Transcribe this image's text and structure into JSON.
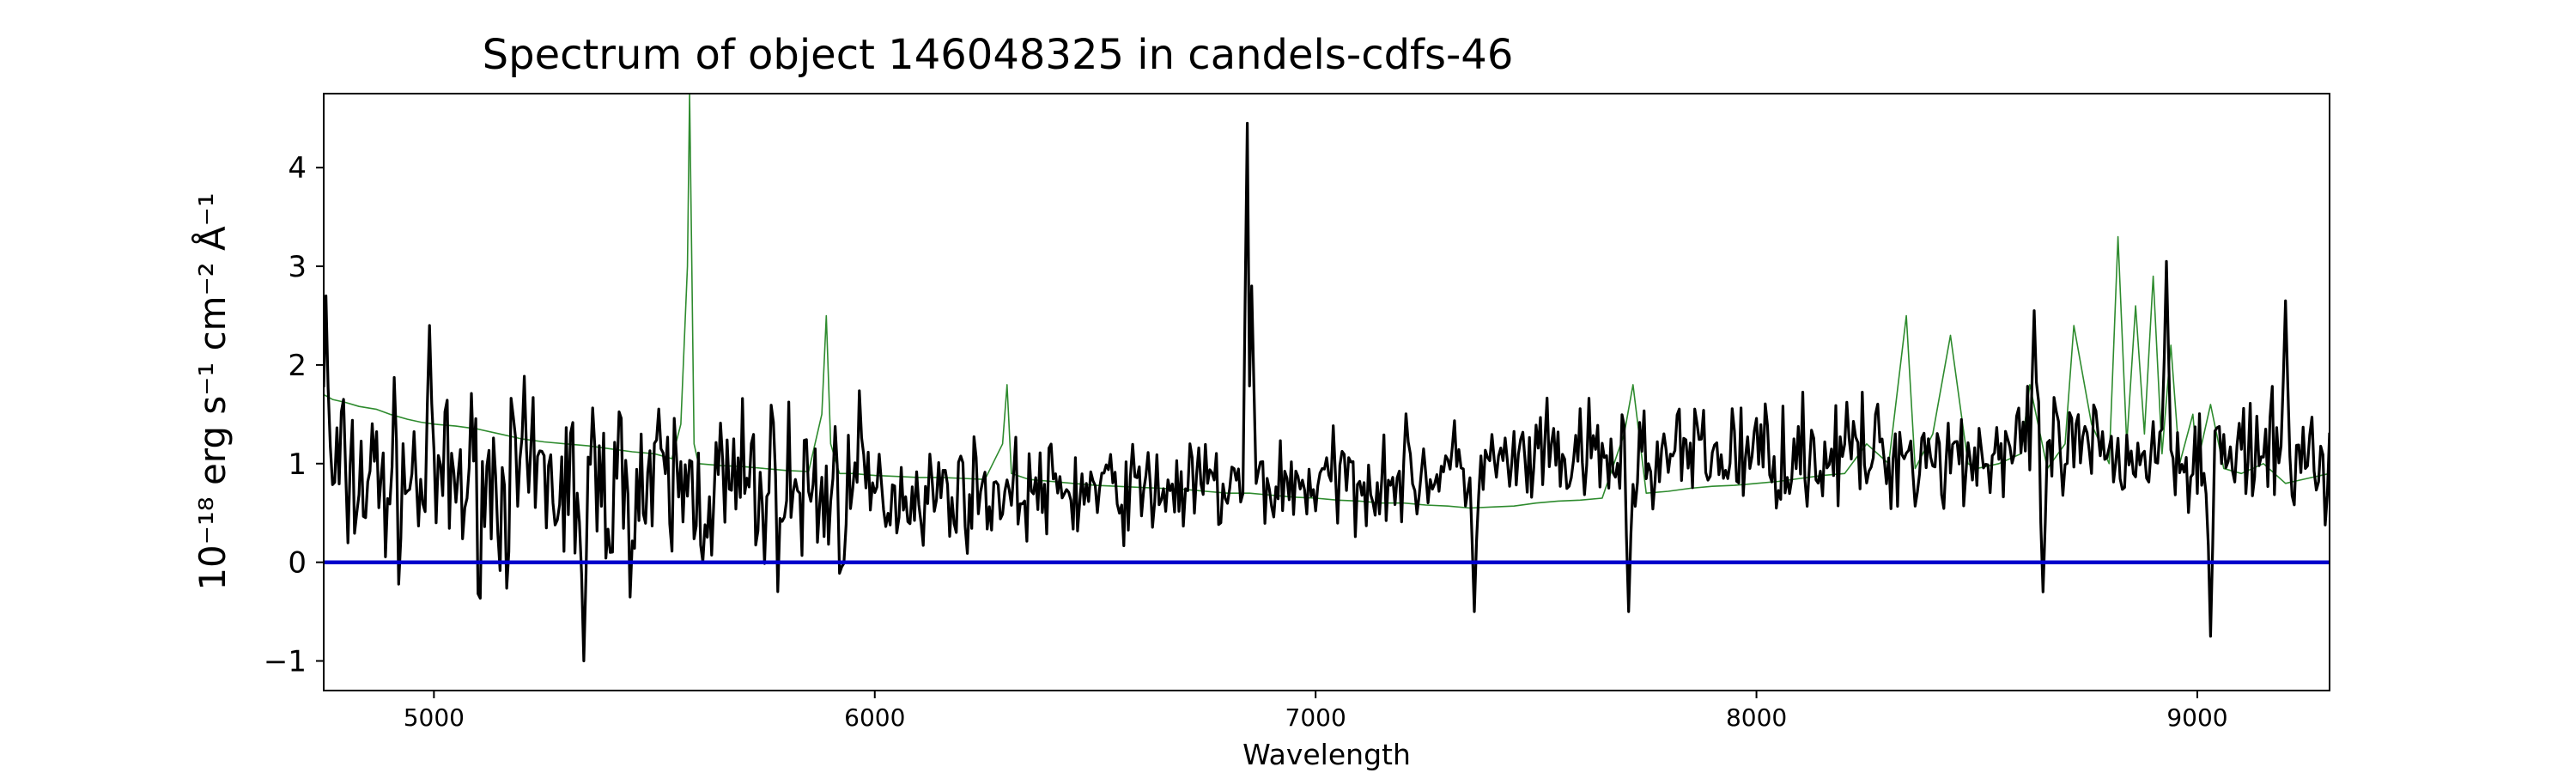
{
  "chart_data": {
    "type": "line",
    "title": "Spectrum of object 146048325 in candels-cdfs-46",
    "xlabel": "Wavelength",
    "ylabel": "10⁻¹⁸ erg s⁻¹ cm⁻² Å⁻¹",
    "xlim": [
      4750,
      9300
    ],
    "ylim": [
      -1.3,
      4.75
    ],
    "xticks": [
      5000,
      6000,
      7000,
      8000,
      9000
    ],
    "yticks": [
      -1,
      0,
      1,
      2,
      3,
      4
    ],
    "xtick_labels": [
      "5000",
      "6000",
      "7000",
      "8000",
      "9000"
    ],
    "ytick_labels": [
      "−1",
      "0",
      "1",
      "2",
      "3",
      "4"
    ],
    "grid": false,
    "legend": "none",
    "series": [
      {
        "color": "#2e8b2e",
        "x": [
          4750,
          4770,
          4800,
          4830,
          4870,
          4900,
          4940,
          4970,
          5000,
          5050,
          5100,
          5150,
          5200,
          5250,
          5300,
          5350,
          5400,
          5450,
          5500,
          5540,
          5560,
          5575,
          5580,
          5585,
          5590,
          5600,
          5650,
          5700,
          5750,
          5800,
          5850,
          5880,
          5890,
          5900,
          5920,
          5950,
          6000,
          6050,
          6100,
          6150,
          6200,
          6250,
          6290,
          6300,
          6310,
          6350,
          6400,
          6450,
          6500,
          6550,
          6600,
          6650,
          6700,
          6750,
          6800,
          6850,
          6900,
          6950,
          7000,
          7050,
          7100,
          7150,
          7200,
          7250,
          7300,
          7350,
          7400,
          7450,
          7500,
          7550,
          7600,
          7650,
          7700,
          7720,
          7750,
          7800,
          7850,
          7900,
          7950,
          8000,
          8050,
          8100,
          8150,
          8200,
          8250,
          8300,
          8340,
          8360,
          8400,
          8440,
          8480,
          8500,
          8550,
          8600,
          8620,
          8660,
          8700,
          8720,
          8760,
          8800,
          8820,
          8840,
          8860,
          8880,
          8900,
          8920,
          8940,
          8960,
          8990,
          9000,
          9030,
          9060,
          9100,
          9150,
          9200,
          9250,
          9300
        ],
        "y": [
          1.7,
          1.65,
          1.62,
          1.58,
          1.55,
          1.5,
          1.45,
          1.42,
          1.4,
          1.38,
          1.35,
          1.3,
          1.25,
          1.22,
          1.2,
          1.18,
          1.15,
          1.12,
          1.1,
          1.05,
          1.4,
          3.0,
          4.75,
          3.0,
          1.2,
          1.0,
          0.98,
          0.97,
          0.95,
          0.93,
          0.92,
          1.5,
          2.5,
          1.2,
          0.9,
          0.9,
          0.88,
          0.87,
          0.86,
          0.86,
          0.85,
          0.84,
          1.2,
          1.8,
          0.9,
          0.84,
          0.82,
          0.8,
          0.78,
          0.77,
          0.76,
          0.75,
          0.74,
          0.72,
          0.7,
          0.7,
          0.68,
          0.66,
          0.65,
          0.63,
          0.62,
          0.6,
          0.6,
          0.58,
          0.57,
          0.55,
          0.56,
          0.57,
          0.6,
          0.62,
          0.63,
          0.65,
          1.3,
          1.8,
          0.7,
          0.72,
          0.75,
          0.77,
          0.78,
          0.8,
          0.82,
          0.85,
          0.88,
          0.9,
          1.2,
          1.0,
          2.5,
          0.95,
          1.3,
          2.3,
          1.0,
          0.95,
          1.0,
          1.1,
          1.8,
          0.95,
          1.2,
          2.4,
          1.4,
          1.0,
          3.3,
          1.2,
          2.6,
          1.3,
          2.9,
          1.1,
          2.2,
          1.0,
          1.5,
          1.0,
          1.6,
          0.95,
          0.9,
          1.0,
          0.8,
          0.85,
          0.9
        ]
      },
      {
        "color": "#000000",
        "seed": 7,
        "x_range": [
          4750,
          9300
        ],
        "step": 5,
        "baseline": [
          [
            4750,
            0.85
          ],
          [
            5500,
            0.75
          ],
          [
            6000,
            0.7
          ],
          [
            6500,
            0.72
          ],
          [
            7000,
            0.8
          ],
          [
            7500,
            1.0
          ],
          [
            8000,
            1.1
          ],
          [
            8500,
            1.1
          ],
          [
            9000,
            1.1
          ],
          [
            9300,
            1.0
          ]
        ],
        "features": [
          {
            "x": 4755,
            "y": 2.7
          },
          {
            "x": 4990,
            "y": 2.4
          },
          {
            "x": 5340,
            "y": -1.0
          },
          {
            "x": 6845,
            "y": 4.45
          },
          {
            "x": 6855,
            "y": 2.8
          },
          {
            "x": 7360,
            "y": -0.5
          },
          {
            "x": 7710,
            "y": -0.5
          },
          {
            "x": 8630,
            "y": 2.55
          },
          {
            "x": 8650,
            "y": -0.3
          },
          {
            "x": 8930,
            "y": 3.05
          },
          {
            "x": 9030,
            "y": -0.75
          },
          {
            "x": 9200,
            "y": 2.65
          }
        ]
      },
      {
        "color": "#0000cc",
        "x": [
          4750,
          9300
        ],
        "y": [
          0,
          0
        ]
      }
    ]
  }
}
